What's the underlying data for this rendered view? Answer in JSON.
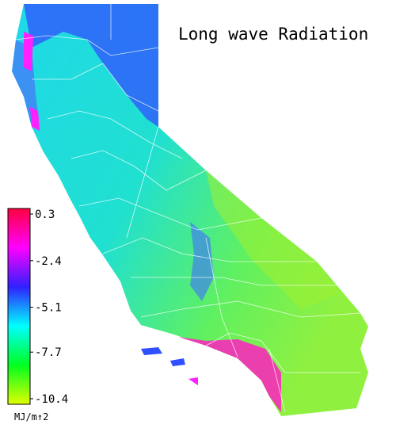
{
  "title": "Long wave Radiation",
  "colorbar": {
    "clim": [
      -10.4,
      0.3
    ],
    "ticks": [
      0.3,
      -2.4,
      -5.1,
      -7.7,
      -10.4
    ],
    "unit_label": "MJ/m↑2",
    "colors": [
      "#ff0040",
      "#ff00ff",
      "#3020ff",
      "#00ffff",
      "#00ff20",
      "#e0ff00"
    ]
  }
}
